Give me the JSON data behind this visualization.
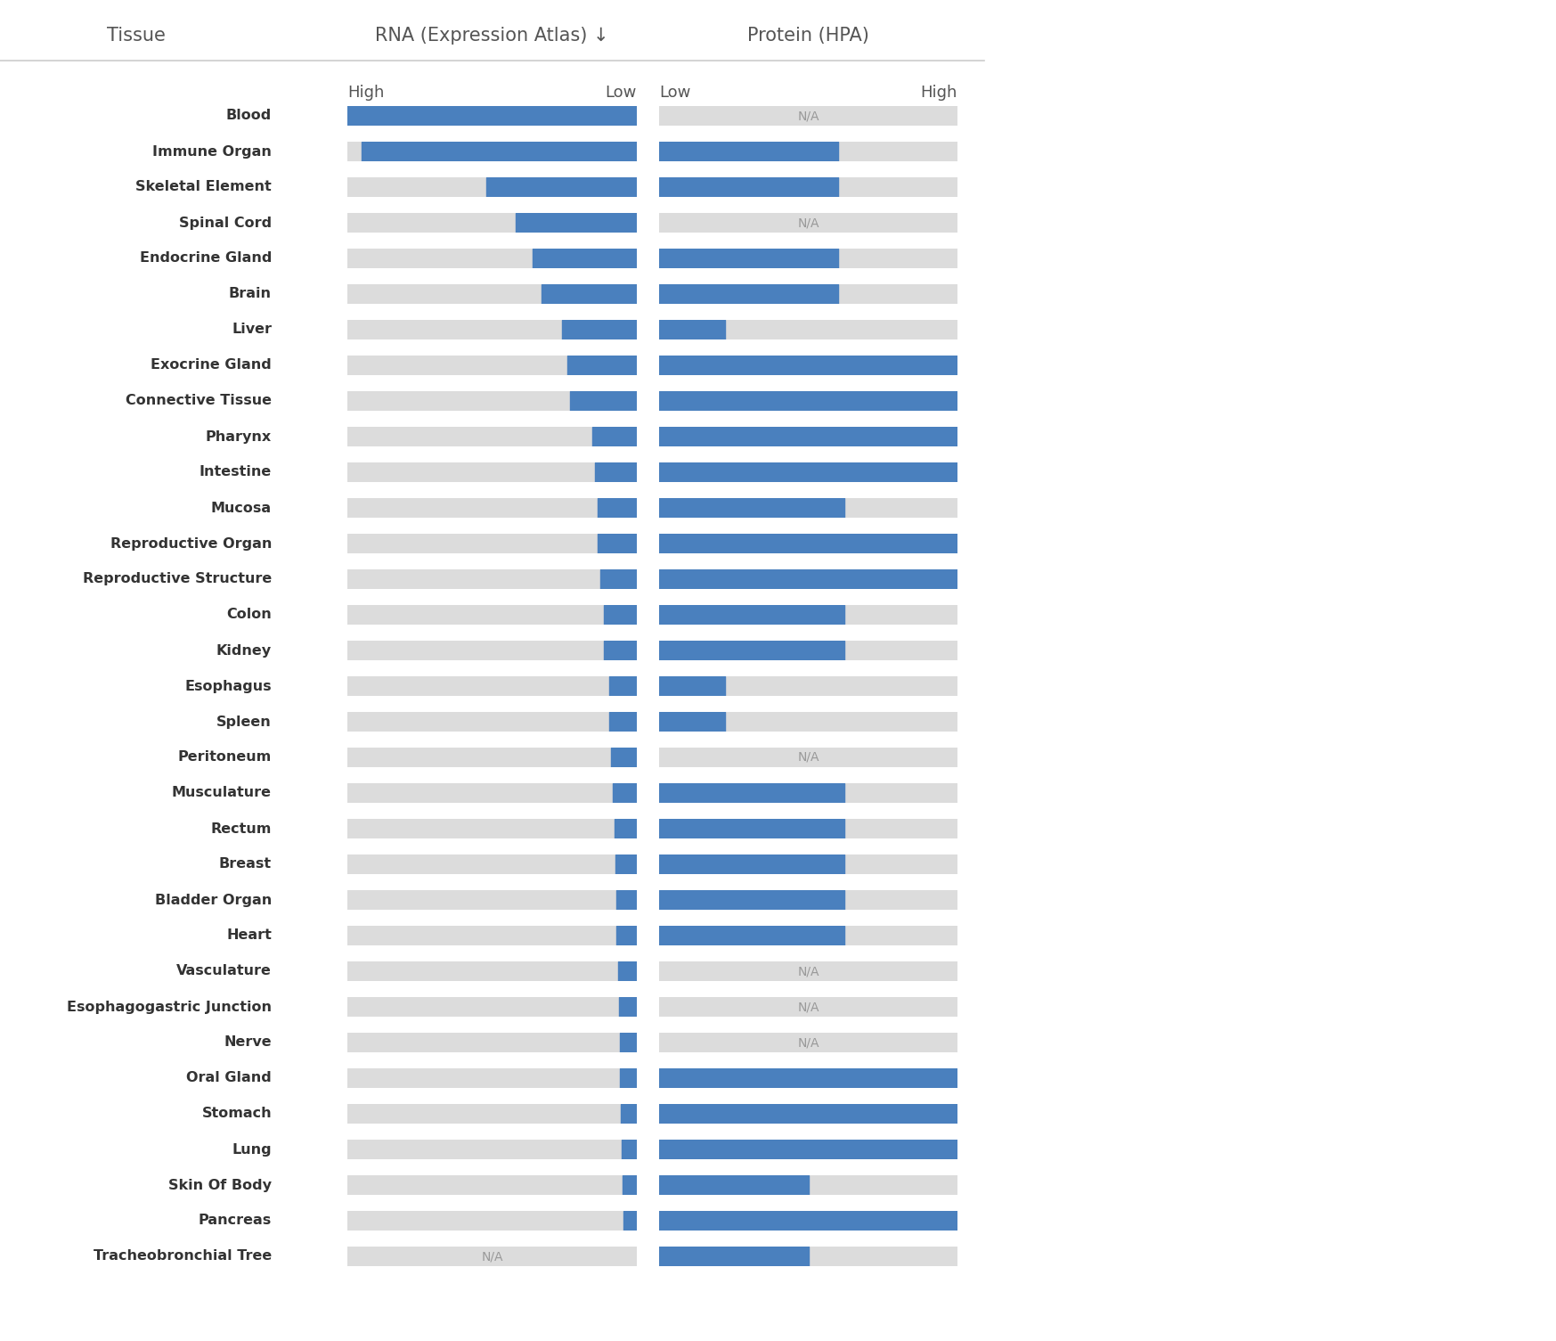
{
  "tissues": [
    "Blood",
    "Immune Organ",
    "Skeletal Element",
    "Spinal Cord",
    "Endocrine Gland",
    "Brain",
    "Liver",
    "Exocrine Gland",
    "Connective Tissue",
    "Pharynx",
    "Intestine",
    "Mucosa",
    "Reproductive Organ",
    "Reproductive Structure",
    "Colon",
    "Kidney",
    "Esophagus",
    "Spleen",
    "Peritoneum",
    "Musculature",
    "Rectum",
    "Breast",
    "Bladder Organ",
    "Heart",
    "Vasculature",
    "Esophagogastric Junction",
    "Nerve",
    "Oral Gland",
    "Stomach",
    "Lung",
    "Skin Of Body",
    "Pancreas",
    "Tracheobronchial Tree"
  ],
  "rna_values": [
    1.0,
    0.95,
    0.52,
    0.42,
    0.36,
    0.33,
    0.26,
    0.24,
    0.23,
    0.155,
    0.145,
    0.135,
    0.135,
    0.125,
    0.115,
    0.115,
    0.095,
    0.095,
    0.088,
    0.082,
    0.078,
    0.075,
    0.072,
    0.07,
    0.065,
    0.063,
    0.06,
    0.058,
    0.055,
    0.053,
    0.05,
    0.047,
    null
  ],
  "rna_na": [
    false,
    false,
    false,
    false,
    false,
    false,
    false,
    false,
    false,
    false,
    false,
    false,
    false,
    false,
    false,
    false,
    false,
    false,
    false,
    false,
    false,
    false,
    false,
    false,
    false,
    false,
    false,
    false,
    false,
    false,
    false,
    false,
    true
  ],
  "protein_values": [
    null,
    0.6,
    0.6,
    null,
    0.6,
    0.6,
    0.22,
    1.0,
    1.0,
    1.0,
    1.0,
    0.62,
    1.0,
    1.0,
    0.62,
    0.62,
    0.22,
    0.22,
    null,
    0.62,
    0.62,
    0.62,
    0.62,
    0.62,
    null,
    null,
    null,
    1.0,
    1.0,
    1.0,
    0.5,
    1.0,
    0.5
  ],
  "protein_na": [
    true,
    false,
    false,
    true,
    false,
    false,
    false,
    false,
    false,
    false,
    false,
    false,
    false,
    false,
    false,
    false,
    false,
    false,
    true,
    false,
    false,
    false,
    false,
    false,
    true,
    true,
    true,
    false,
    false,
    false,
    false,
    false,
    false
  ],
  "bar_color": "#4a80be",
  "bg_color": "#dcdcdc",
  "na_text_color": "#999999",
  "title_rna": "RNA (Expression Atlas) ↓",
  "title_protein": "Protein (HPA)",
  "title_tissue": "Tissue",
  "label_high": "High",
  "label_low": "Low",
  "background": "#ffffff",
  "text_color": "#555555",
  "label_color": "#444444",
  "tissue_bold": true
}
